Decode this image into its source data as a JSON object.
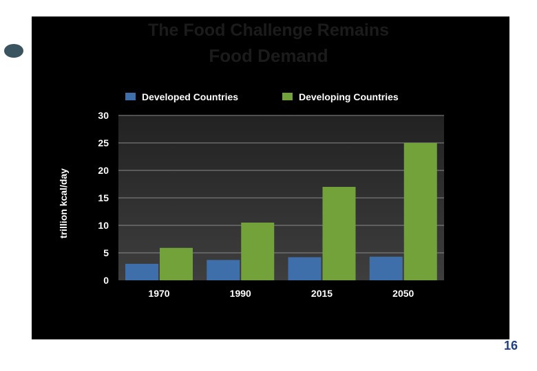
{
  "slide": {
    "title": "The Food Challenge Remains",
    "subtitle": "Food Demand",
    "page_number": "16"
  },
  "colors": {
    "developed": "#3f6faa",
    "developing": "#73a23b",
    "background": "#000000",
    "title": "#1b1b1b",
    "page_number": "#1f3e8c"
  },
  "chart_data": {
    "type": "bar",
    "title": "Food Demand",
    "xlabel": "",
    "ylabel": "trillion kcal/day",
    "categories": [
      "1970",
      "1990",
      "2015",
      "2050"
    ],
    "series": [
      {
        "name": "Developed Countries",
        "values": [
          3.0,
          3.7,
          4.2,
          4.3
        ]
      },
      {
        "name": "Developing Countries",
        "values": [
          5.9,
          10.5,
          17.0,
          25.0
        ]
      }
    ],
    "ylim": [
      0,
      30
    ],
    "yticks": [
      0,
      5,
      10,
      15,
      20,
      25,
      30
    ],
    "grid": true,
    "legend_position": "top"
  }
}
